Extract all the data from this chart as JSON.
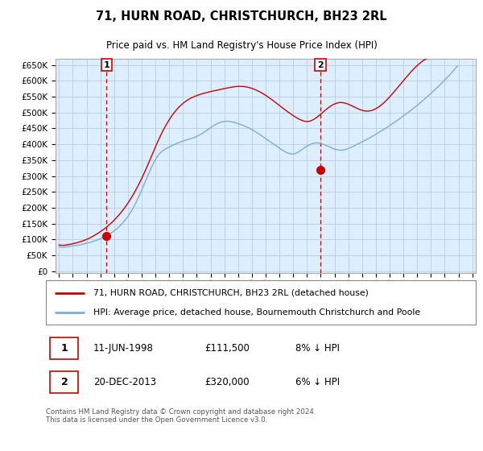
{
  "title": "71, HURN ROAD, CHRISTCHURCH, BH23 2RL",
  "subtitle": "Price paid vs. HM Land Registry's House Price Index (HPI)",
  "ylabel_ticks": [
    0,
    50000,
    100000,
    150000,
    200000,
    250000,
    300000,
    350000,
    400000,
    450000,
    500000,
    550000,
    600000,
    650000
  ],
  "ylim": [
    -5000,
    670000
  ],
  "xlim": [
    1994.75,
    2025.25
  ],
  "transactions": [
    {
      "year": 1998.44,
      "price": 111500,
      "label": "1",
      "date": "11-JUN-1998",
      "price_str": "£111,500",
      "hpi_pct": "8% ↓ HPI"
    },
    {
      "year": 2013.97,
      "price": 320000,
      "label": "2",
      "date": "20-DEC-2013",
      "price_str": "£320,000",
      "hpi_pct": "6% ↓ HPI"
    }
  ],
  "red_line_color": "#cc0000",
  "blue_line_color": "#7aaddb",
  "chart_bg_color": "#ddeeff",
  "grid_color": "#bbccdd",
  "legend_line1": "71, HURN ROAD, CHRISTCHURCH, BH23 2RL (detached house)",
  "legend_line2": "HPI: Average price, detached house, Bournemouth Christchurch and Poole",
  "footer": "Contains HM Land Registry data © Crown copyright and database right 2024.\nThis data is licensed under the Open Government Licence v3.0.",
  "hpi_data_monthly": {
    "start_year": 1995.0,
    "values": [
      77000,
      76500,
      76200,
      76000,
      76100,
      76300,
      76800,
      77200,
      77800,
      78300,
      78900,
      79400,
      79900,
      80300,
      80800,
      81200,
      81700,
      82300,
      83000,
      83800,
      84600,
      85500,
      86400,
      87300,
      88200,
      89100,
      90100,
      91100,
      92100,
      93200,
      94400,
      95600,
      96900,
      98200,
      99500,
      100800,
      102200,
      103600,
      105200,
      106900,
      108700,
      110600,
      112600,
      114700,
      117000,
      119400,
      121900,
      124500,
      127200,
      130000,
      133000,
      136100,
      139400,
      142900,
      146500,
      150300,
      154300,
      158500,
      163000,
      167700,
      172700,
      178000,
      183600,
      189500,
      195700,
      202200,
      209000,
      216100,
      223500,
      231100,
      239000,
      247100,
      255400,
      263800,
      272300,
      280900,
      289500,
      298100,
      306700,
      315100,
      323200,
      331000,
      338400,
      345400,
      351900,
      357800,
      363100,
      367800,
      371900,
      375500,
      378600,
      381300,
      383700,
      385900,
      387900,
      389800,
      391700,
      393500,
      395300,
      397000,
      398700,
      400300,
      401900,
      403400,
      404900,
      406300,
      407700,
      409000,
      410300,
      411500,
      412700,
      413800,
      414900,
      415900,
      417000,
      418100,
      419300,
      420500,
      421900,
      423300,
      424900,
      426600,
      428400,
      430400,
      432500,
      434700,
      437100,
      439500,
      442000,
      444600,
      447200,
      449800,
      452400,
      454900,
      457300,
      459600,
      461700,
      463700,
      465500,
      467100,
      468500,
      469700,
      470700,
      471500,
      472100,
      472500,
      472700,
      472700,
      472500,
      472100,
      471400,
      470600,
      469700,
      468700,
      467600,
      466500,
      465300,
      464100,
      462800,
      461500,
      460100,
      458700,
      457200,
      455700,
      454100,
      452400,
      450600,
      448700,
      446700,
      444600,
      442400,
      440100,
      437700,
      435300,
      432900,
      430400,
      427900,
      425400,
      422900,
      420400,
      417900,
      415400,
      412800,
      410300,
      407700,
      405200,
      402600,
      400100,
      397600,
      395100,
      392600,
      390100,
      387700,
      385300,
      383000,
      380700,
      378600,
      376500,
      374600,
      373000,
      371600,
      370500,
      369800,
      369500,
      369600,
      370200,
      371300,
      372900,
      374800,
      377000,
      379500,
      382000,
      384600,
      387200,
      389700,
      392100,
      394400,
      396500,
      398400,
      400100,
      401500,
      402700,
      403600,
      404200,
      404500,
      404500,
      404200,
      403600,
      402700,
      401700,
      400400,
      399000,
      397500,
      395900,
      394200,
      392600,
      391000,
      389400,
      387900,
      386500,
      385200,
      384000,
      383100,
      382300,
      381800,
      381500,
      381500,
      381800,
      382400,
      383200,
      384200,
      385400,
      386800,
      388300,
      389900,
      391500,
      393200,
      394900,
      396700,
      398500,
      400300,
      402100,
      403900,
      405800,
      407600,
      409500,
      411400,
      413300,
      415200,
      417200,
      419200,
      421200,
      423200,
      425300,
      427400,
      429500,
      431700,
      433800,
      436000,
      438200,
      440400,
      442600,
      444900,
      447200,
      449500,
      451800,
      454200,
      456600,
      459000,
      461400,
      463800,
      466300,
      468800,
      471300,
      473800,
      476300,
      478900,
      481500,
      484100,
      486700,
      489400,
      492100,
      494800,
      497500,
      500300,
      503100,
      505900,
      508700,
      511500,
      514400,
      517300,
      520200,
      523100,
      526000,
      529000,
      532000,
      535000,
      538100,
      541200,
      544300,
      547500,
      550700,
      553900,
      557200,
      560500,
      563800,
      567200,
      570600,
      574000,
      577400,
      580900,
      584400,
      588000,
      591600,
      595200,
      598900,
      602600,
      606300,
      610100,
      614000,
      617900,
      621800,
      625800,
      629900,
      634000,
      638200,
      642400,
      646700
    ]
  },
  "red_data_monthly": {
    "start_year": 1995.0,
    "values": [
      82500,
      82200,
      82000,
      81900,
      82000,
      82200,
      82700,
      83200,
      83900,
      84500,
      85200,
      85900,
      86700,
      87400,
      88300,
      89100,
      90100,
      91100,
      92200,
      93400,
      94600,
      95900,
      97300,
      98700,
      100200,
      101800,
      103500,
      105300,
      107200,
      109100,
      111100,
      113200,
      115400,
      117600,
      119900,
      122200,
      124700,
      127100,
      129700,
      132400,
      135100,
      137900,
      140900,
      143900,
      147100,
      150300,
      153700,
      157200,
      160800,
      164500,
      168400,
      172300,
      176400,
      180600,
      185000,
      189500,
      194200,
      199000,
      204000,
      209200,
      214500,
      220000,
      225700,
      231600,
      237600,
      243800,
      250200,
      256700,
      263400,
      270300,
      277400,
      284700,
      292200,
      299900,
      307700,
      315700,
      323900,
      332200,
      340700,
      349300,
      357900,
      366500,
      375100,
      383600,
      392000,
      400200,
      408300,
      416200,
      423900,
      431400,
      438700,
      445700,
      452500,
      459100,
      465400,
      471500,
      477400,
      483000,
      488400,
      493500,
      498400,
      503000,
      507400,
      511500,
      515400,
      519100,
      522600,
      525900,
      529000,
      531900,
      534600,
      537100,
      539500,
      541700,
      543800,
      545700,
      547500,
      549200,
      550800,
      552300,
      553700,
      555100,
      556300,
      557500,
      558600,
      559700,
      560700,
      561700,
      562600,
      563500,
      564400,
      565200,
      566100,
      566900,
      567700,
      568500,
      569300,
      570100,
      570900,
      571700,
      572500,
      573300,
      574100,
      574900,
      575700,
      576400,
      577200,
      577900,
      578600,
      579300,
      579900,
      580500,
      581000,
      581500,
      581900,
      582200,
      582400,
      582600,
      582600,
      582500,
      582300,
      582000,
      581500,
      580900,
      580200,
      579400,
      578500,
      577400,
      576300,
      575000,
      573600,
      572100,
      570500,
      568800,
      567000,
      565100,
      563100,
      561000,
      558900,
      556700,
      554400,
      552000,
      549500,
      547000,
      544400,
      541800,
      539100,
      536400,
      533700,
      530900,
      528100,
      525300,
      522400,
      519600,
      516800,
      514000,
      511200,
      508500,
      505700,
      503000,
      500400,
      497800,
      495200,
      492700,
      490300,
      488000,
      485700,
      483600,
      481500,
      479600,
      477800,
      476200,
      474800,
      473600,
      472700,
      472100,
      471900,
      472000,
      472600,
      473600,
      475000,
      476700,
      478700,
      481000,
      483600,
      486300,
      489200,
      492200,
      495300,
      498400,
      501500,
      504600,
      507700,
      510700,
      513600,
      516300,
      518900,
      521300,
      523500,
      525500,
      527200,
      528700,
      529900,
      530800,
      531400,
      531700,
      531700,
      531400,
      530800,
      530000,
      529000,
      527800,
      526400,
      524800,
      523200,
      521500,
      519700,
      517900,
      516100,
      514300,
      512600,
      511000,
      509500,
      508200,
      507100,
      506100,
      505400,
      504900,
      504700,
      504700,
      505000,
      505600,
      506400,
      507500,
      508900,
      510500,
      512300,
      514400,
      516700,
      519200,
      521900,
      524800,
      527900,
      531100,
      534500,
      538100,
      541800,
      545600,
      549500,
      553500,
      557600,
      561800,
      566000,
      570300,
      574600,
      578900,
      583200,
      587600,
      591900,
      596300,
      600600,
      604900,
      609200,
      613400,
      617600,
      621800,
      625900,
      629900,
      633800,
      637600,
      641300,
      644900,
      648300,
      651600,
      654700,
      657700,
      660500,
      663100,
      665500,
      667700,
      669700,
      671600,
      673200,
      674700,
      676000,
      677100,
      678100,
      678900,
      679600,
      680100,
      680500,
      680800,
      681000,
      681100,
      681200,
      681100,
      681000,
      680900,
      680700,
      680600,
      680400,
      680200,
      680100,
      680000,
      679900,
      679800,
      679800,
      679700,
      679700,
      679600,
      679600,
      679600,
      679500,
      679500,
      679500,
      679400,
      679400,
      679400,
      679300,
      679300
    ]
  }
}
